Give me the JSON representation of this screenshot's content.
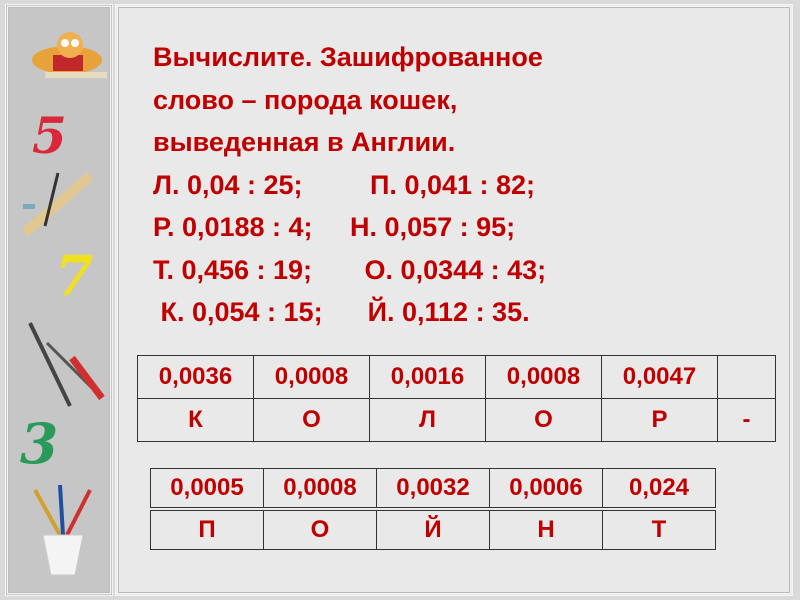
{
  "task": {
    "lines": [
      "Вычислите. Зашифрованное",
      "слово – порода кошек,",
      "выведенная в Англии.",
      "Л. 0,04 : 25;         П. 0,041 : 82;",
      "Р. 0,0188 : 4;     Н. 0,057 : 95;",
      "Т. 0,456 : 19;       О. 0,0344 : 43;",
      " К. 0,054 : 15;      Й. 0,112 : 35."
    ]
  },
  "table1": {
    "numbers": [
      "0,0036",
      "0,0008",
      "0,0016",
      "0,0008",
      "0,0047",
      ""
    ],
    "letters": [
      "К",
      "О",
      "Л",
      "О",
      "Р",
      "-"
    ]
  },
  "table2": {
    "numbers": [
      "0,0005",
      "0,0008",
      "0,0032",
      "0,0006",
      "0,024"
    ],
    "letters": [
      "П",
      "О",
      "Й",
      "Н",
      "Т"
    ]
  },
  "sidebar": {
    "icons": [
      "cartoon-character-icon",
      "digit-5-icon",
      "ruler-pencil-icon",
      "digit-7-icon",
      "compass-pencil-icon",
      "digit-3-icon",
      "pencil-cup-icon"
    ],
    "digits": [
      "5",
      "7",
      "3"
    ]
  },
  "colors": {
    "text": "#c00000",
    "background": "#e9e9e9"
  }
}
